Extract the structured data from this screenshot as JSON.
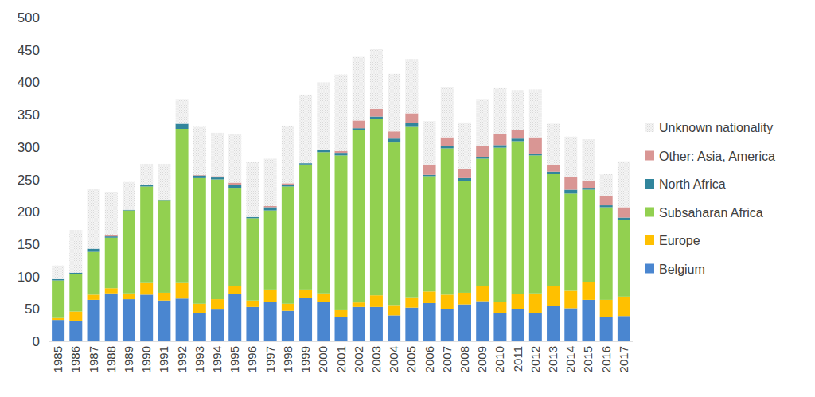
{
  "chart_data": {
    "type": "bar",
    "stacked": true,
    "grid": false,
    "legend": "right",
    "categories": [
      "1985",
      "1986",
      "1987",
      "1988",
      "1989",
      "1990",
      "1991",
      "1992",
      "1993",
      "1994",
      "1995",
      "1996",
      "1997",
      "1998",
      "1999",
      "2000",
      "2001",
      "2002",
      "2003",
      "2004",
      "2005",
      "2006",
      "2007",
      "2008",
      "2009",
      "2010",
      "2011",
      "2012",
      "2013",
      "2014",
      "2015",
      "2016",
      "2017"
    ],
    "ylim": [
      0,
      500
    ],
    "yticks": [
      0,
      50,
      100,
      150,
      200,
      250,
      300,
      350,
      400,
      450,
      500
    ],
    "series": [
      {
        "name": "Belgium",
        "color": "#4a86d0",
        "values": [
          33,
          32,
          64,
          74,
          65,
          72,
          63,
          66,
          44,
          49,
          73,
          53,
          61,
          47,
          67,
          61,
          37,
          53,
          53,
          40,
          52,
          59,
          50,
          57,
          62,
          44,
          50,
          43,
          55,
          51,
          64,
          38,
          39
        ]
      },
      {
        "name": "Europe",
        "color": "#ffc000",
        "values": [
          3,
          14,
          8,
          8,
          9,
          18,
          12,
          24,
          14,
          16,
          12,
          10,
          19,
          11,
          13,
          13,
          11,
          7,
          18,
          16,
          16,
          18,
          22,
          18,
          24,
          17,
          23,
          31,
          30,
          27,
          28,
          26,
          30
        ]
      },
      {
        "name": "Subsaharan Africa",
        "color": "#92d050",
        "values": [
          58,
          58,
          66,
          78,
          128,
          149,
          142,
          238,
          194,
          185,
          152,
          127,
          122,
          181,
          193,
          218,
          239,
          266,
          272,
          251,
          263,
          178,
          226,
          173,
          196,
          238,
          236,
          213,
          173,
          150,
          142,
          143,
          118
        ]
      },
      {
        "name": "North Africa",
        "color": "#31859c",
        "values": [
          2,
          2,
          5,
          2,
          1,
          2,
          1,
          8,
          4,
          3,
          4,
          2,
          5,
          3,
          2,
          3,
          4,
          3,
          4,
          6,
          6,
          2,
          4,
          4,
          3,
          4,
          4,
          3,
          4,
          6,
          3,
          3,
          4
        ]
      },
      {
        "name": "Other: Asia, America",
        "color": "#d99694",
        "values": [
          0,
          0,
          0,
          2,
          0,
          0,
          0,
          0,
          1,
          2,
          4,
          0,
          2,
          2,
          0,
          0,
          3,
          12,
          12,
          11,
          15,
          16,
          13,
          14,
          17,
          17,
          13,
          25,
          11,
          20,
          11,
          15,
          16
        ]
      },
      {
        "name": "Unknown nationality",
        "color": "#d9d9d9",
        "values": [
          21,
          66,
          92,
          67,
          43,
          33,
          56,
          37,
          74,
          67,
          75,
          85,
          73,
          89,
          106,
          105,
          118,
          98,
          92,
          89,
          84,
          67,
          78,
          72,
          71,
          72,
          62,
          74,
          63,
          62,
          64,
          33,
          71
        ]
      }
    ]
  }
}
